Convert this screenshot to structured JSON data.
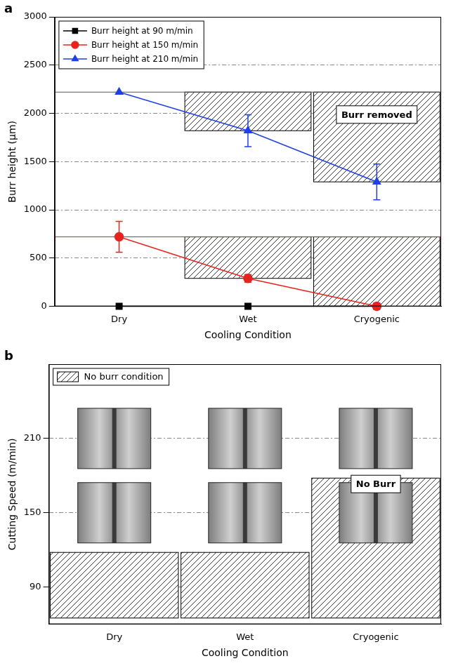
{
  "chart_data": [
    {
      "panel": "a",
      "type": "line",
      "categories": [
        "Dry",
        "Wet",
        "Cryogenic"
      ],
      "x_label": "Cooling Condition",
      "y_label": "Burr height (µm)",
      "ylim": [
        0,
        3000
      ],
      "yticks": [
        0,
        500,
        1000,
        1500,
        2000,
        2500,
        3000
      ],
      "grid": true,
      "legend": "top-left",
      "series": [
        {
          "name": "Burr height at 90 m/min",
          "color": "#000000",
          "marker": "square",
          "values": [
            0,
            0,
            0
          ],
          "errors": [
            0,
            0,
            0
          ]
        },
        {
          "name": "Burr height at 150 m/min",
          "color": "#e8231f",
          "marker": "circle",
          "values": [
            720,
            290,
            0
          ],
          "errors": [
            160,
            40,
            0
          ]
        },
        {
          "name": "Burr height at 210 m/min",
          "color": "#1f3fe8",
          "marker": "triangle",
          "values": [
            2220,
            1820,
            1290
          ],
          "errors": [
            0,
            165,
            185
          ]
        }
      ],
      "reference_lines": [
        {
          "value": 2220,
          "color": "#555555"
        },
        {
          "value": 720,
          "color": "#b03030"
        }
      ],
      "regions": [
        {
          "x": "Wet",
          "from": 1820,
          "to": 2220
        },
        {
          "x": "Cryogenic",
          "from": 1290,
          "to": 2220
        },
        {
          "x": "Wet",
          "from": 290,
          "to": 720
        },
        {
          "x": "Cryogenic",
          "from": 0,
          "to": 720
        }
      ],
      "annotation": "Burr removed"
    },
    {
      "panel": "b",
      "type": "scatter",
      "categories": [
        "Dry",
        "Wet",
        "Cryogenic"
      ],
      "x_label": "Cooling Condition",
      "y_label": "Cutting Speed (m/min)",
      "ylim": [
        60,
        270
      ],
      "yticks": [
        90,
        150,
        210
      ],
      "grid": true,
      "legend": "top-left",
      "points": [
        {
          "x": "Dry",
          "y": 210
        },
        {
          "x": "Wet",
          "y": 210
        },
        {
          "x": "Cryogenic",
          "y": 210
        },
        {
          "x": "Dry",
          "y": 150
        },
        {
          "x": "Wet",
          "y": 150
        },
        {
          "x": "Cryogenic",
          "y": 150
        }
      ],
      "regions": [
        {
          "x": "Dry",
          "from": 65,
          "to": 118
        },
        {
          "x": "Wet",
          "from": 65,
          "to": 118
        },
        {
          "x": "Cryogenic",
          "from": 65,
          "to": 178
        }
      ],
      "region_label": "No burr condition",
      "annotation": "No Burr"
    }
  ]
}
